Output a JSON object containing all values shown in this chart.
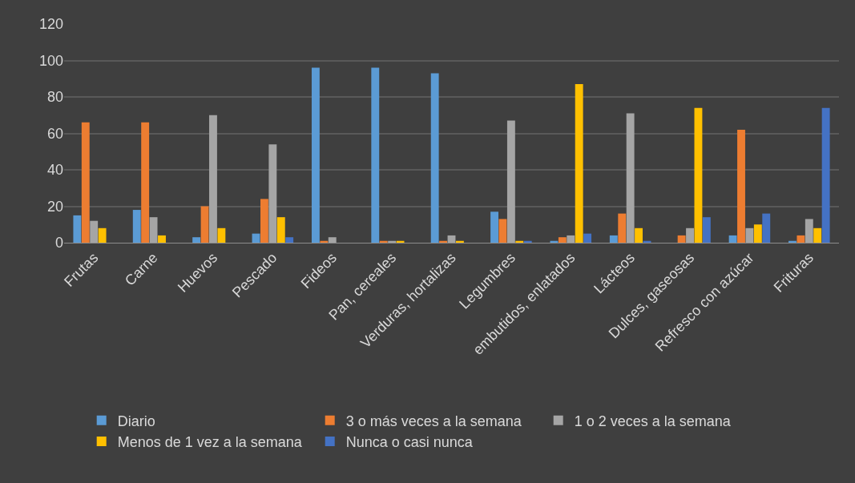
{
  "chart_data": {
    "type": "bar",
    "categories": [
      "Frutas",
      "Carne",
      "Huevos",
      "Pescado",
      "Fideos",
      "Pan, cereales",
      "Verduras, hortalizas",
      "Legumbres",
      "embutidos, enlatados",
      "Lácteos",
      "Dulces, gaseosas",
      "Refresco con azúcar",
      "Frituras"
    ],
    "series": [
      {
        "name": "Diario",
        "color": "#5b9bd5",
        "values": [
          15,
          18,
          3,
          5,
          96,
          96,
          93,
          17,
          1,
          4,
          0,
          4,
          1
        ]
      },
      {
        "name": "3 o más veces a la semana",
        "color": "#ed7d31",
        "values": [
          66,
          66,
          20,
          24,
          1,
          1,
          1,
          13,
          3,
          16,
          4,
          62,
          4
        ]
      },
      {
        "name": "1 o 2 veces a la semana",
        "color": "#a5a5a5",
        "values": [
          12,
          14,
          70,
          54,
          3,
          1,
          4,
          67,
          4,
          71,
          8,
          8,
          13
        ]
      },
      {
        "name": "Menos de 1 vez a la semana",
        "color": "#ffc000",
        "values": [
          8,
          4,
          8,
          14,
          0,
          1,
          1,
          1,
          87,
          8,
          74,
          10,
          8
        ]
      },
      {
        "name": "Nunca o casi nunca",
        "color": "#4472c4",
        "values": [
          0,
          0,
          0,
          3,
          0,
          0,
          0,
          1,
          5,
          1,
          14,
          16,
          74
        ]
      }
    ],
    "ylim": [
      0,
      120
    ],
    "yticks": [
      0,
      20,
      40,
      60,
      80,
      100,
      120
    ],
    "grid": "y",
    "legend": "bottom"
  }
}
